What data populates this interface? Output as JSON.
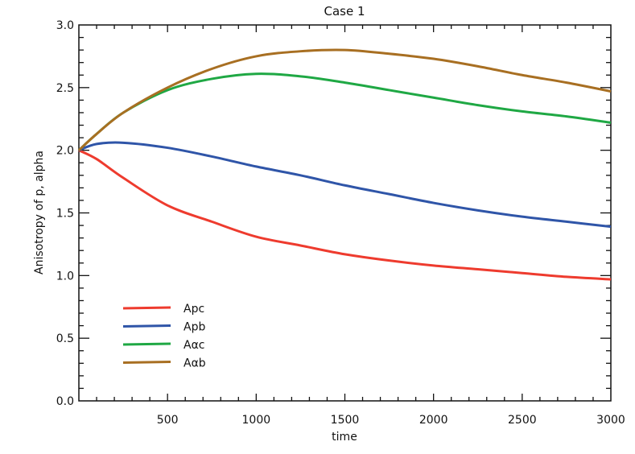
{
  "chart_data": {
    "type": "line",
    "title": "Case 1",
    "xlabel": "time",
    "ylabel": "Anisotropy  of  p,  alpha",
    "xlim": [
      0,
      3000
    ],
    "ylim": [
      0,
      3.0
    ],
    "xticks": [
      500,
      1000,
      1500,
      2000,
      2500,
      3000
    ],
    "xtick_labels": [
      "500",
      "1000",
      "1500",
      "2000",
      "2500",
      "3000"
    ],
    "yticks": [
      0,
      0.5,
      1.0,
      1.5,
      2.0,
      2.5,
      3.0
    ],
    "ytick_labels": [
      "0.0",
      "0.5",
      "1.0",
      "1.5",
      "2.0",
      "2.5",
      "3.0"
    ],
    "grid": false,
    "legend_position": "bottom-left",
    "x": [
      0,
      100,
      250,
      500,
      750,
      1000,
      1250,
      1500,
      1750,
      2000,
      2250,
      2500,
      2750,
      3000
    ],
    "series": [
      {
        "name": "Apc",
        "color": "#ee3b2e",
        "values": [
          2.0,
          1.93,
          1.78,
          1.56,
          1.43,
          1.31,
          1.24,
          1.17,
          1.12,
          1.08,
          1.05,
          1.02,
          0.99,
          0.97
        ]
      },
      {
        "name": "Apb",
        "color": "#2f55a8",
        "values": [
          2.0,
          2.05,
          2.06,
          2.02,
          1.95,
          1.87,
          1.8,
          1.72,
          1.65,
          1.58,
          1.52,
          1.47,
          1.43,
          1.39
        ]
      },
      {
        "name": "Aαc",
        "color": "#1fa844",
        "values": [
          2.0,
          2.13,
          2.3,
          2.48,
          2.57,
          2.61,
          2.59,
          2.54,
          2.48,
          2.42,
          2.36,
          2.31,
          2.27,
          2.22
        ]
      },
      {
        "name": "Aαb",
        "color": "#a86f22",
        "values": [
          2.0,
          2.13,
          2.3,
          2.5,
          2.65,
          2.75,
          2.79,
          2.8,
          2.77,
          2.73,
          2.67,
          2.6,
          2.54,
          2.47
        ]
      }
    ]
  }
}
